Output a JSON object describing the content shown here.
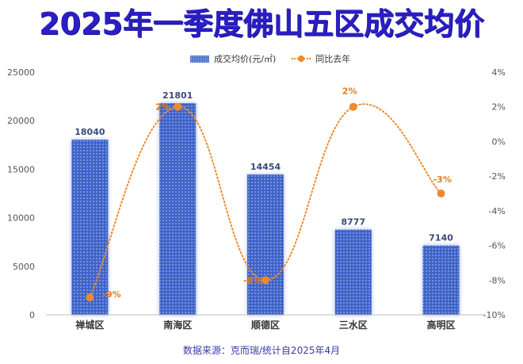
{
  "title": "2025年一季度佛山五区成交均价",
  "source": "数据来源：克而瑞/统计自2025年4月",
  "colors": {
    "title": "#2a1fc4",
    "bar": "#3f64c8",
    "line": "#ee8a2c"
  },
  "chart_data": {
    "type": "bar",
    "categories": [
      "禅城区",
      "南海区",
      "顺德区",
      "三水区",
      "高明区"
    ],
    "series": [
      {
        "name": "成交均价(元/㎡)",
        "type": "bar",
        "axis": "left",
        "values": [
          18040,
          21801,
          14454,
          8777,
          7140
        ],
        "labels": [
          "18040",
          "21801",
          "14454",
          "8777",
          "7140"
        ]
      },
      {
        "name": "同比去年",
        "type": "line",
        "axis": "right",
        "smooth": true,
        "dotted": true,
        "values": [
          -9,
          2,
          -8,
          2,
          -3
        ],
        "labels": [
          "-9%",
          "2%",
          "-8%",
          "2%",
          "-3%"
        ]
      }
    ],
    "y_left": {
      "range": [
        0,
        25000
      ],
      "ticks": [
        0,
        5000,
        10000,
        15000,
        20000,
        25000
      ],
      "tick_labels": [
        "0",
        "5000",
        "10000",
        "15000",
        "20000",
        "25000"
      ]
    },
    "y_right": {
      "range": [
        -10,
        4
      ],
      "ticks": [
        -10,
        -8,
        -6,
        -4,
        -2,
        0,
        2,
        4
      ],
      "tick_labels": [
        "-10%",
        "-8%",
        "-6%",
        "-4%",
        "-2%",
        "0%",
        "2%",
        "4%"
      ]
    },
    "grid": false,
    "legend": "top-center"
  }
}
